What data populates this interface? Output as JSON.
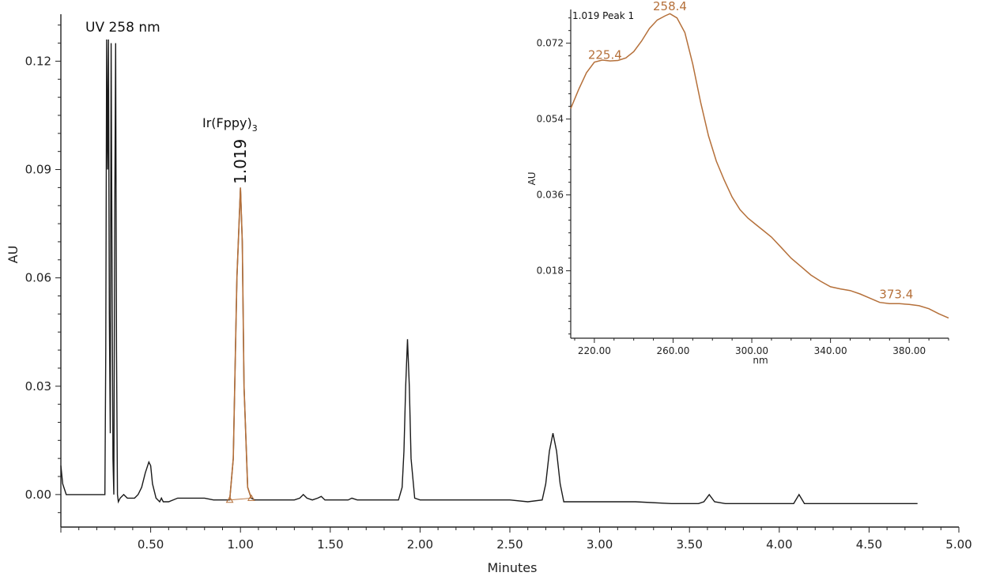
{
  "chart_data": [
    {
      "type": "line",
      "title": "UV 258 nm",
      "xlabel": "Minutes",
      "ylabel": "AU",
      "xlim": [
        0.0,
        5.0
      ],
      "ylim": [
        -0.009,
        0.133
      ],
      "xticks": [
        "0.50",
        "1.00",
        "1.50",
        "2.00",
        "2.50",
        "3.00",
        "3.50",
        "4.00",
        "4.50",
        "5.00"
      ],
      "yticks": [
        "0.00",
        "0.03",
        "0.06",
        "0.09",
        "0.12"
      ],
      "grid": false,
      "annotations": [
        {
          "label": "Ir(Fppy)",
          "subscript": "3",
          "rt": "1.019"
        }
      ],
      "colors": {
        "trace": "#1a1a1a",
        "peak": "#b5703a",
        "axis": "#222222"
      },
      "series": [
        {
          "x": [
            0.0,
            0.01,
            0.03,
            0.05,
            0.1,
            0.2,
            0.24,
            0.245,
            0.25,
            0.255,
            0.26,
            0.265,
            0.27,
            0.275,
            0.28,
            0.285,
            0.29,
            0.295,
            0.3,
            0.305,
            0.31,
            0.315,
            0.32,
            0.33,
            0.35,
            0.37,
            0.39,
            0.41,
            0.43,
            0.45,
            0.47,
            0.49,
            0.5,
            0.51,
            0.53,
            0.55,
            0.56,
            0.57,
            0.58,
            0.6,
            0.65,
            0.7,
            0.75,
            0.8,
            0.85,
            0.9,
            0.94,
            0.96,
            0.98,
            1.0,
            1.01,
            1.02,
            1.04,
            1.06,
            1.08,
            1.1,
            1.2,
            1.3,
            1.33,
            1.35,
            1.37,
            1.4,
            1.43,
            1.45,
            1.47,
            1.5,
            1.55,
            1.6,
            1.62,
            1.65,
            1.7,
            1.8,
            1.88,
            1.9,
            1.91,
            1.92,
            1.93,
            1.94,
            1.95,
            1.97,
            2.0,
            2.1,
            2.2,
            2.3,
            2.4,
            2.5,
            2.6,
            2.68,
            2.7,
            2.72,
            2.74,
            2.76,
            2.78,
            2.8,
            2.9,
            3.0,
            3.2,
            3.4,
            3.55,
            3.58,
            3.61,
            3.64,
            3.7,
            3.8,
            3.9,
            4.0,
            4.08,
            4.11,
            4.14,
            4.2,
            4.3,
            4.4,
            4.5,
            4.6,
            4.7,
            4.77
          ],
          "y": [
            0.008,
            0.003,
            0.0,
            0.0,
            0.0,
            0.0,
            0.0,
            0.0,
            0.04,
            0.126,
            0.09,
            0.126,
            0.05,
            0.017,
            0.125,
            0.06,
            0.01,
            0.0,
            0.08,
            0.125,
            0.04,
            0.0,
            -0.002,
            -0.001,
            0.0,
            -0.001,
            -0.001,
            -0.001,
            0.0,
            0.002,
            0.006,
            0.009,
            0.008,
            0.003,
            -0.001,
            -0.002,
            -0.001,
            -0.002,
            -0.002,
            -0.002,
            -0.001,
            -0.001,
            -0.001,
            -0.001,
            -0.0015,
            -0.0015,
            -0.0015,
            0.01,
            0.06,
            0.085,
            0.07,
            0.03,
            0.002,
            -0.001,
            -0.0015,
            -0.0015,
            -0.0015,
            -0.0015,
            -0.001,
            0.0,
            -0.001,
            -0.0015,
            -0.001,
            -0.0005,
            -0.0015,
            -0.0015,
            -0.0015,
            -0.0015,
            -0.001,
            -0.0015,
            -0.0015,
            -0.0015,
            -0.0015,
            0.002,
            0.012,
            0.03,
            0.043,
            0.03,
            0.01,
            -0.001,
            -0.0015,
            -0.0015,
            -0.0015,
            -0.0015,
            -0.0015,
            -0.0015,
            -0.002,
            -0.0015,
            0.003,
            0.012,
            0.017,
            0.012,
            0.003,
            -0.002,
            -0.002,
            -0.002,
            -0.002,
            -0.0025,
            -0.0025,
            -0.002,
            0.0,
            -0.002,
            -0.0025,
            -0.0025,
            -0.0025,
            -0.0025,
            -0.0025,
            0.0,
            -0.0025,
            -0.0025,
            -0.0025,
            -0.0025,
            -0.0025,
            -0.0025,
            -0.0025,
            -0.0025
          ]
        }
      ]
    },
    {
      "type": "line",
      "title": "1.019 Peak 1",
      "xlabel": "nm",
      "ylabel": "AU",
      "xlim": [
        208,
        400
      ],
      "ylim": [
        0.002,
        0.08
      ],
      "xticks": [
        "220.00",
        "260.00",
        "300.00",
        "340.00",
        "380.00"
      ],
      "yticks": [
        "0.018",
        "0.036",
        "0.054",
        "0.072"
      ],
      "grid": false,
      "annotations": [
        {
          "label": "225.4",
          "x": 225.4,
          "y": 0.067
        },
        {
          "label": "258.4",
          "x": 258.4,
          "y": 0.0785
        },
        {
          "label": "373.4",
          "x": 373.4,
          "y": 0.0102
        }
      ],
      "series": [
        {
          "x": [
            208,
            212,
            216,
            220,
            224,
            228,
            232,
            236,
            240,
            244,
            248,
            252,
            256,
            258.4,
            262,
            266,
            270,
            274,
            278,
            282,
            286,
            290,
            294,
            298,
            302,
            306,
            310,
            315,
            320,
            325,
            330,
            335,
            340,
            345,
            350,
            355,
            360,
            365,
            370,
            375,
            380,
            385,
            390,
            395,
            400
          ],
          "y": [
            0.0565,
            0.061,
            0.065,
            0.0675,
            0.068,
            0.0678,
            0.0679,
            0.0685,
            0.07,
            0.0725,
            0.0755,
            0.0775,
            0.0785,
            0.079,
            0.078,
            0.0745,
            0.067,
            0.058,
            0.05,
            0.044,
            0.0395,
            0.0355,
            0.0325,
            0.0305,
            0.029,
            0.0275,
            0.026,
            0.0235,
            0.021,
            0.019,
            0.017,
            0.0155,
            0.0142,
            0.0137,
            0.0133,
            0.0125,
            0.0115,
            0.0105,
            0.0102,
            0.0102,
            0.01,
            0.0097,
            0.009,
            0.0078,
            0.0068
          ]
        }
      ]
    }
  ]
}
